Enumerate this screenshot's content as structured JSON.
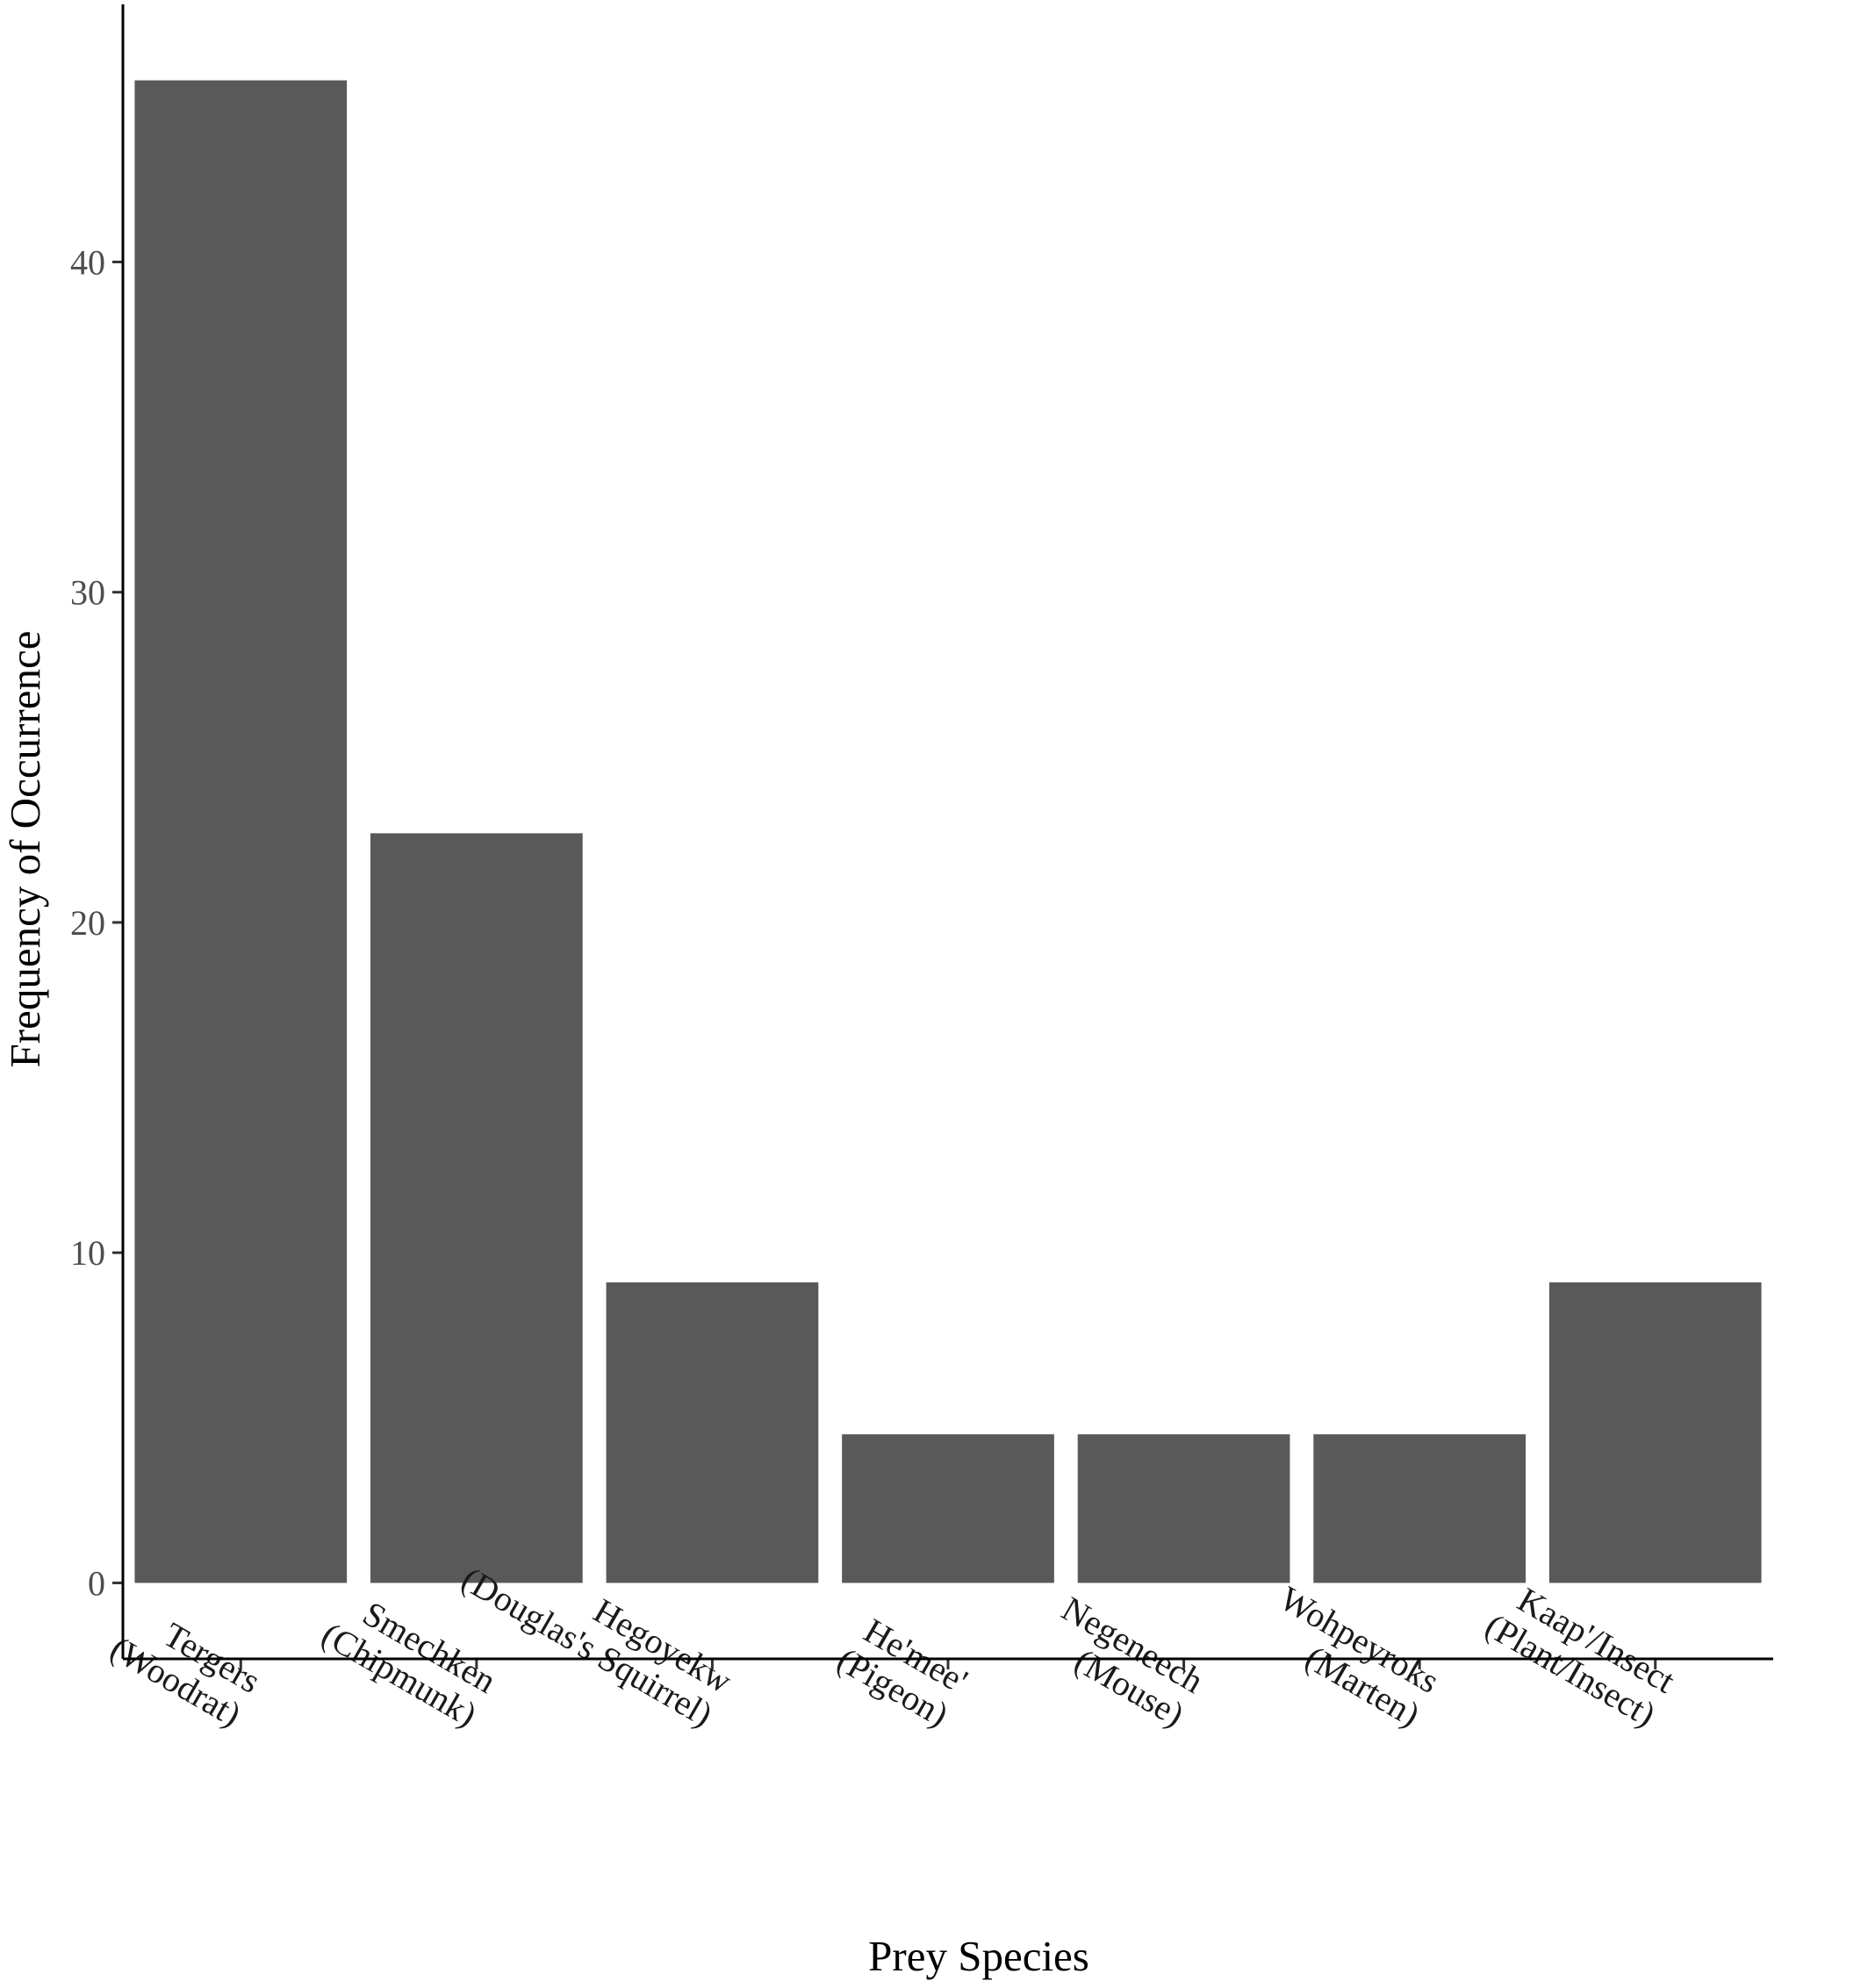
{
  "chart_data": {
    "type": "bar",
    "title": "",
    "xlabel": "Prey Species",
    "ylabel": "Frequency of Occurrence",
    "categories": [
      [
        "Tergers",
        "(Woodrat)"
      ],
      [
        "Smechken",
        "(Chipmunk)"
      ],
      [
        "Hegoyekw",
        "(Douglas's Squirrel)"
      ],
      [
        "He'mee'",
        "(Pigeon)"
      ],
      [
        "Negeneech",
        "(Mouse)"
      ],
      [
        "Wohpeyroks",
        "(Marten)"
      ],
      [
        "Kaap'/Insect",
        "(Plant/Insect)"
      ]
    ],
    "values": [
      45.5,
      22.7,
      9.1,
      4.5,
      4.5,
      4.5,
      9.1
    ],
    "ylim": [
      -2.3,
      47.8
    ],
    "yticks": [
      0,
      10,
      20,
      30,
      40
    ],
    "grid": false,
    "legend": "none",
    "colors": {
      "bar": "#595959",
      "axis": "#000000",
      "tick_text": "#4d4d4d",
      "category_text": "#1a1a1a"
    }
  }
}
